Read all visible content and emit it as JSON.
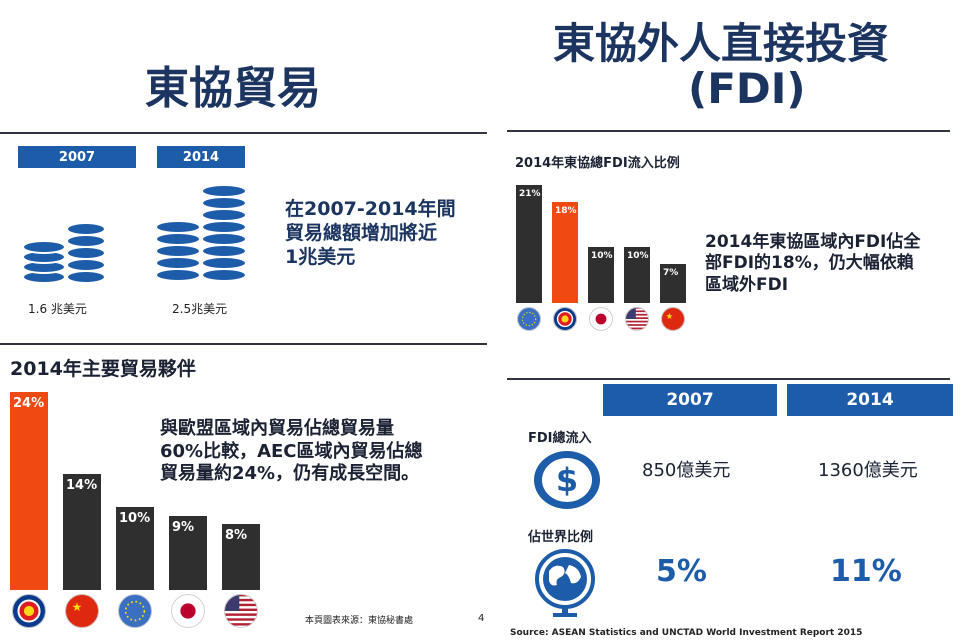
{
  "left": {
    "title": "東協貿易",
    "trade_years": [
      "2007",
      "2014"
    ],
    "trade_values": [
      "1.6 兆美元",
      "2.5兆美元"
    ],
    "trade_note": [
      "在2007-2014年間",
      "貿易總額增加將近",
      "1兆美元"
    ],
    "partners_title": "2014年主要貿易夥伴",
    "partners_note": [
      "與歐盟區域內貿易佔總貿易量",
      "60%比較，AEC區域內貿易佔總",
      "貿易量約24%，仍有成長空間。"
    ],
    "source": "本頁圖表來源：東協秘書處",
    "page_num": "4"
  },
  "right": {
    "title_line1": "東協外人直接投資",
    "title_line2": "(FDI)",
    "fdi_chart_title": "2014年東協總FDI流入比例",
    "fdi_note": [
      "2014年東協區域內FDI佔全",
      "部FDI的18%，仍大幅依賴",
      "區域外FDI"
    ],
    "table_years": [
      "2007",
      "2014"
    ],
    "row1_label": "FDI總流入",
    "row1_values": [
      "850億美元",
      "1360億美元"
    ],
    "row2_label": "佔世界比例",
    "row2_values": [
      "5%",
      "11%"
    ],
    "source": "Source: ASEAN Statistics and UNCTAD World Investment Report 2015"
  },
  "colors": {
    "navy": "#1b3560",
    "blue": "#1d5ca8",
    "orange": "#f04a12",
    "dark": "#2f2f2f"
  },
  "icons": [
    "coin-stack-icon",
    "dollar-coin-icon",
    "globe-icon"
  ],
  "chart_data": [
    {
      "type": "bar",
      "title": "2014年主要貿易夥伴",
      "categories": [
        "ASEAN",
        "China",
        "EU",
        "Japan",
        "USA"
      ],
      "values": [
        24,
        14,
        10,
        9,
        8
      ],
      "value_labels": [
        "24%",
        "14%",
        "10%",
        "9%",
        "8%"
      ],
      "colors": [
        "#f04a12",
        "#2f2f2f",
        "#2f2f2f",
        "#2f2f2f",
        "#2f2f2f"
      ],
      "ylim": [
        0,
        24
      ]
    },
    {
      "type": "bar",
      "title": "2014年東協總FDI流入比例",
      "categories": [
        "EU",
        "ASEAN",
        "Japan",
        "USA",
        "China"
      ],
      "values": [
        21,
        18,
        10,
        10,
        7
      ],
      "value_labels": [
        "21%",
        "18%",
        "10%",
        "10%",
        "7%"
      ],
      "colors": [
        "#2f2f2f",
        "#f04a12",
        "#2f2f2f",
        "#2f2f2f",
        "#2f2f2f"
      ],
      "ylim": [
        0,
        21
      ]
    }
  ]
}
